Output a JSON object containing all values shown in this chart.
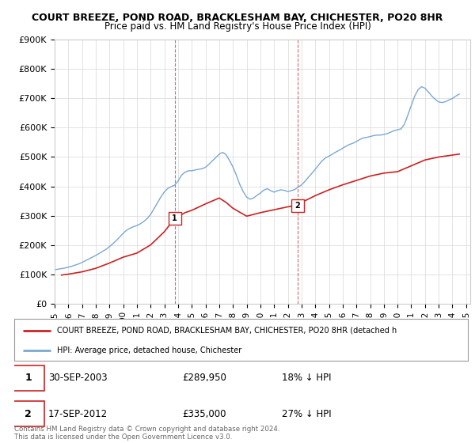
{
  "title": "COURT BREEZE, POND ROAD, BRACKLESHAM BAY, CHICHESTER, PO20 8HR",
  "subtitle": "Price paid vs. HM Land Registry's House Price Index (HPI)",
  "ylim": [
    0,
    900000
  ],
  "yticks": [
    0,
    100000,
    200000,
    300000,
    400000,
    500000,
    600000,
    700000,
    800000,
    900000
  ],
  "ytick_labels": [
    "£0",
    "£100K",
    "£200K",
    "£300K",
    "£400K",
    "£500K",
    "£600K",
    "£700K",
    "£800K",
    "£900K"
  ],
  "xlim_start": 1995.0,
  "xlim_end": 2025.3,
  "xticks": [
    1995,
    1996,
    1997,
    1998,
    1999,
    2000,
    2001,
    2002,
    2003,
    2004,
    2005,
    2006,
    2007,
    2008,
    2009,
    2010,
    2011,
    2012,
    2013,
    2014,
    2015,
    2016,
    2017,
    2018,
    2019,
    2020,
    2021,
    2022,
    2023,
    2024,
    2025
  ],
  "hpi_color": "#7aa8d2",
  "price_color": "#cc2222",
  "marker1_x": 2003.75,
  "marker1_y": 289950,
  "marker1_label": "1",
  "marker1_date": "30-SEP-2003",
  "marker1_price": "£289,950",
  "marker1_hpi": "18% ↓ HPI",
  "marker2_x": 2012.71,
  "marker2_y": 335000,
  "marker2_label": "2",
  "marker2_date": "17-SEP-2012",
  "marker2_price": "£335,000",
  "marker2_hpi": "27% ↓ HPI",
  "legend_line1": "COURT BREEZE, POND ROAD, BRACKLESHAM BAY, CHICHESTER, PO20 8HR (detached h",
  "legend_line2": "HPI: Average price, detached house, Chichester",
  "footer": "Contains HM Land Registry data © Crown copyright and database right 2024.\nThis data is licensed under the Open Government Licence v3.0.",
  "hpi_data_x": [
    1995.0,
    1995.25,
    1995.5,
    1995.75,
    1996.0,
    1996.25,
    1996.5,
    1996.75,
    1997.0,
    1997.25,
    1997.5,
    1997.75,
    1998.0,
    1998.25,
    1998.5,
    1998.75,
    1999.0,
    1999.25,
    1999.5,
    1999.75,
    2000.0,
    2000.25,
    2000.5,
    2000.75,
    2001.0,
    2001.25,
    2001.5,
    2001.75,
    2002.0,
    2002.25,
    2002.5,
    2002.75,
    2003.0,
    2003.25,
    2003.5,
    2003.75,
    2004.0,
    2004.25,
    2004.5,
    2004.75,
    2005.0,
    2005.25,
    2005.5,
    2005.75,
    2006.0,
    2006.25,
    2006.5,
    2006.75,
    2007.0,
    2007.25,
    2007.5,
    2007.75,
    2008.0,
    2008.25,
    2008.5,
    2008.75,
    2009.0,
    2009.25,
    2009.5,
    2009.75,
    2010.0,
    2010.25,
    2010.5,
    2010.75,
    2011.0,
    2011.25,
    2011.5,
    2011.75,
    2012.0,
    2012.25,
    2012.5,
    2012.75,
    2013.0,
    2013.25,
    2013.5,
    2013.75,
    2014.0,
    2014.25,
    2014.5,
    2014.75,
    2015.0,
    2015.25,
    2015.5,
    2015.75,
    2016.0,
    2016.25,
    2016.5,
    2016.75,
    2017.0,
    2017.25,
    2017.5,
    2017.75,
    2018.0,
    2018.25,
    2018.5,
    2018.75,
    2019.0,
    2019.25,
    2019.5,
    2019.75,
    2020.0,
    2020.25,
    2020.5,
    2020.75,
    2021.0,
    2021.25,
    2021.5,
    2021.75,
    2022.0,
    2022.25,
    2022.5,
    2022.75,
    2023.0,
    2023.25,
    2023.5,
    2023.75,
    2024.0,
    2024.25,
    2024.5
  ],
  "hpi_data_y": [
    115000,
    117000,
    119000,
    121000,
    124000,
    127000,
    131000,
    135000,
    140000,
    146000,
    152000,
    158000,
    164000,
    171000,
    178000,
    185000,
    194000,
    204000,
    215000,
    227000,
    240000,
    250000,
    257000,
    262000,
    266000,
    272000,
    280000,
    290000,
    304000,
    324000,
    344000,
    364000,
    381000,
    393000,
    399000,
    404000,
    418000,
    438000,
    448000,
    453000,
    453000,
    456000,
    458000,
    460000,
    465000,
    475000,
    487000,
    498000,
    510000,
    516000,
    508000,
    488000,
    466000,
    438000,
    406000,
    382000,
    363000,
    356000,
    360000,
    369000,
    377000,
    387000,
    392000,
    385000,
    380000,
    385000,
    388000,
    386000,
    382000,
    385000,
    389000,
    397000,
    405000,
    417000,
    431000,
    444000,
    458000,
    473000,
    487000,
    497000,
    503000,
    510000,
    517000,
    523000,
    530000,
    537000,
    543000,
    547000,
    553000,
    560000,
    565000,
    567000,
    570000,
    573000,
    575000,
    575000,
    577000,
    580000,
    585000,
    590000,
    593000,
    596000,
    612000,
    643000,
    676000,
    708000,
    730000,
    740000,
    735000,
    722000,
    708000,
    697000,
    688000,
    686000,
    689000,
    695000,
    700000,
    708000,
    715000
  ],
  "price_data_x": [
    1995.5,
    1996.0,
    1997.0,
    1998.0,
    1999.0,
    2000.0,
    2001.0,
    2002.0,
    2003.0,
    2003.75,
    2004.5,
    2005.0,
    2006.0,
    2007.0,
    2007.5,
    2008.0,
    2009.0,
    2010.0,
    2011.0,
    2012.0,
    2012.71,
    2013.0,
    2014.0,
    2015.0,
    2016.0,
    2017.0,
    2018.0,
    2019.0,
    2020.0,
    2021.0,
    2022.0,
    2023.0,
    2024.5
  ],
  "price_data_y": [
    97000,
    100000,
    108000,
    120000,
    138000,
    158000,
    172000,
    200000,
    245000,
    289950,
    310000,
    318000,
    340000,
    360000,
    345000,
    325000,
    298000,
    310000,
    320000,
    330000,
    335000,
    345000,
    368000,
    388000,
    405000,
    420000,
    435000,
    445000,
    450000,
    470000,
    490000,
    500000,
    510000
  ]
}
